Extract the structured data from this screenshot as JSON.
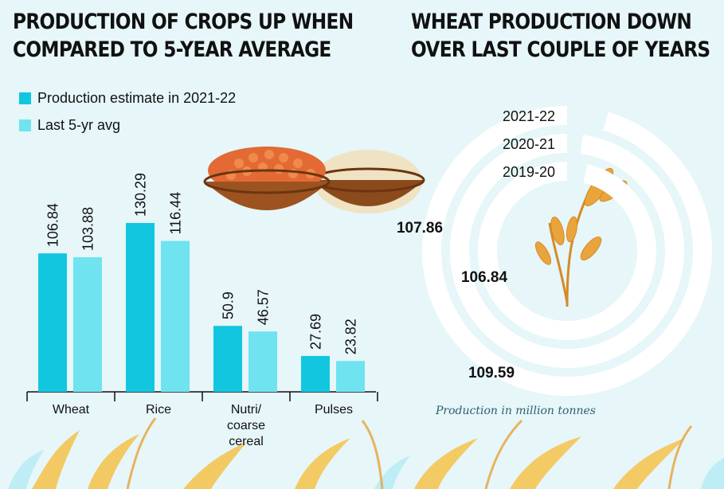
{
  "headline_left": "PRODUCTION OF CROPS UP WHEN COMPARED TO 5-YEAR AVERAGE",
  "headline_left_lines": [
    "PRODUCTION OF CROPS UP WHEN",
    "COMPARED TO 5-YEAR AVERAGE"
  ],
  "headline_right": "WHEAT PRODUCTION DOWN OVER LAST COUPLE OF YEARS",
  "headline_right_lines": [
    "WHEAT PRODUCTION DOWN",
    "OVER LAST COUPLE OF YEARS"
  ],
  "unit_note": "Production in million tonnes",
  "colors": {
    "current": "#12c6e0",
    "average": "#6fe3f0",
    "arc": "#ffffff",
    "background": "#e6f6f9",
    "wheat": "#e8a23a"
  },
  "chart_data": [
    {
      "type": "bar",
      "title": "PRODUCTION OF CROPS UP WHEN COMPARED TO 5-YEAR AVERAGE",
      "categories": [
        "Wheat",
        "Rice",
        "Nutri/ coarse cereal",
        "Pulses"
      ],
      "category_lines": [
        [
          "Wheat"
        ],
        [
          "Rice"
        ],
        [
          "Nutri/",
          "coarse",
          "cereal"
        ],
        [
          "Pulses"
        ]
      ],
      "series": [
        {
          "name": "Production estimate in 2021-22",
          "values": [
            106.84,
            130.29,
            50.9,
            27.69
          ],
          "labels": [
            "106.84",
            "130.29",
            "50.9",
            "27.69"
          ]
        },
        {
          "name": "Last 5-yr avg",
          "values": [
            103.88,
            116.44,
            46.57,
            23.82
          ],
          "labels": [
            "103.88",
            "116.44",
            "46.57",
            "23.82"
          ]
        }
      ],
      "legend": "top-left",
      "grid": false
    },
    {
      "type": "radial-bar",
      "title": "WHEAT PRODUCTION DOWN OVER LAST COUPLE OF YEARS",
      "categories": [
        "2021-22",
        "2020-21",
        "2019-20"
      ],
      "values": [
        106.84,
        109.59,
        107.86
      ],
      "value_labels": [
        "106.84",
        "109.59",
        "107.86"
      ],
      "unit": "Production in million tonnes"
    }
  ]
}
